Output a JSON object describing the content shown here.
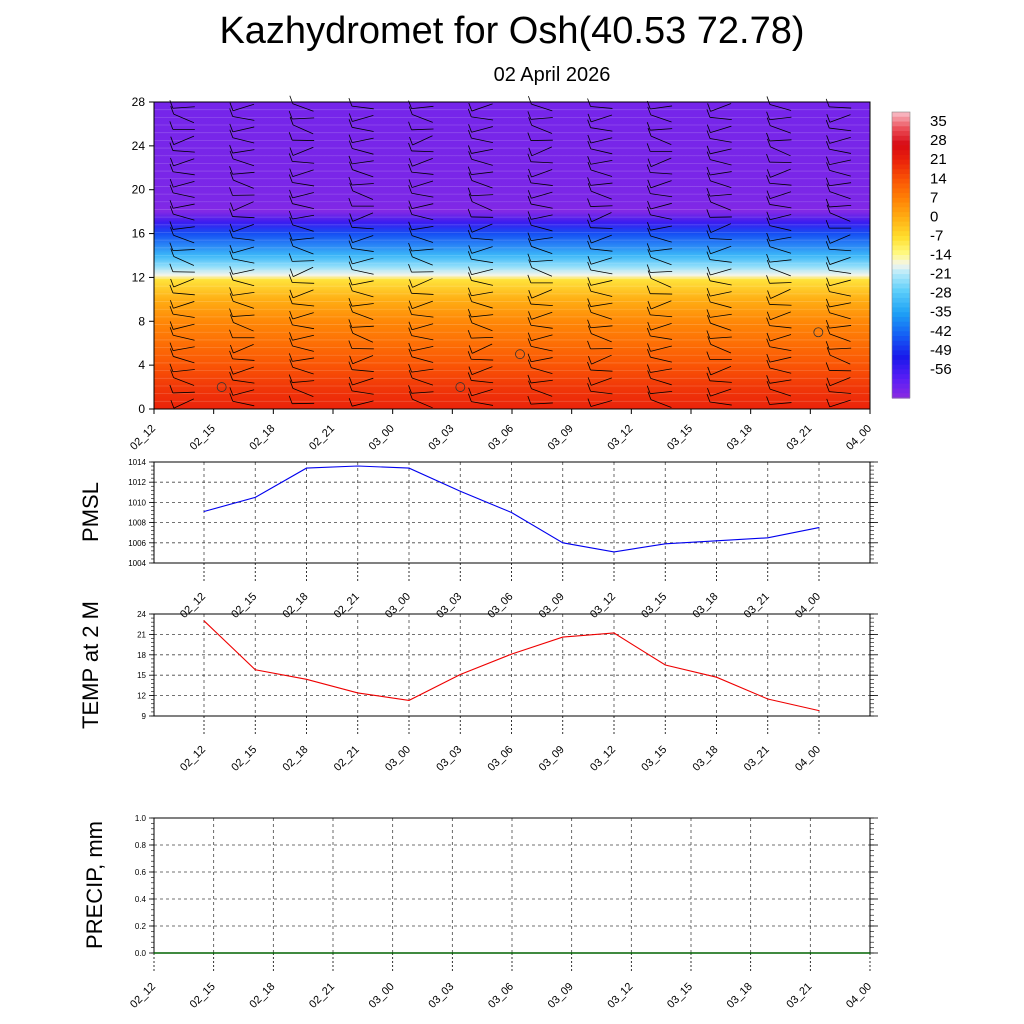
{
  "title": "Kazhydromet for Osh(40.53 72.78)",
  "subtitle": "02 April 2026",
  "time_labels": [
    "02_12",
    "02_15",
    "02_18",
    "02_21",
    "03_00",
    "03_03",
    "03_06",
    "03_09",
    "03_12",
    "03_15",
    "03_18",
    "03_21",
    "04_00"
  ],
  "chart_data": [
    {
      "type": "heatmap",
      "name": "temperature-wind-cross-section",
      "x": [
        "02_12",
        "02_15",
        "02_18",
        "02_21",
        "03_00",
        "03_03",
        "03_06",
        "03_09",
        "03_12",
        "03_15",
        "03_18",
        "03_21",
        "04_00"
      ],
      "ylim": [
        0,
        28
      ],
      "yticks": [
        0,
        4,
        8,
        12,
        16,
        20,
        24,
        28
      ],
      "colorbar_labels": [
        "35",
        "28",
        "21",
        "14",
        "7",
        "0",
        "-7",
        "-14",
        "-21",
        "-28",
        "-35",
        "-42",
        "-49",
        "-56"
      ],
      "colorbar_range": [
        -63,
        42
      ],
      "temperature_profile": [
        {
          "height": 0,
          "value": 24
        },
        {
          "height": 2,
          "value": 21
        },
        {
          "height": 4,
          "value": 17
        },
        {
          "height": 6,
          "value": 13
        },
        {
          "height": 8,
          "value": 9
        },
        {
          "height": 10,
          "value": 3
        },
        {
          "height": 11.8,
          "value": -5
        },
        {
          "height": 12.2,
          "value": -14
        },
        {
          "height": 13,
          "value": -20
        },
        {
          "height": 14,
          "value": -28
        },
        {
          "height": 16,
          "value": -42
        },
        {
          "height": 17,
          "value": -52
        },
        {
          "height": 18,
          "value": -62
        },
        {
          "height": 19,
          "value": -61
        },
        {
          "height": 28,
          "value": -60
        }
      ],
      "barb_heights": [
        0.5,
        1.5,
        2.5,
        3.5,
        4.5,
        5.5,
        6.5,
        7.5,
        8.5,
        9.5,
        10.5,
        11.5,
        12.5,
        13.5,
        14.5,
        15.5,
        16.5,
        17.5,
        18.5,
        19.5,
        20.5,
        21.5,
        22.5,
        23.5,
        24.5,
        25.5,
        26.5,
        27.5
      ]
    },
    {
      "type": "line",
      "name": "pmsl",
      "title": "",
      "xlabel": "",
      "ylabel": "PMSL",
      "x": [
        "02_12",
        "02_15",
        "02_18",
        "02_21",
        "03_00",
        "03_03",
        "03_06",
        "03_09",
        "03_12",
        "03_15",
        "03_18",
        "03_21",
        "04_00"
      ],
      "series": [
        {
          "name": "PMSL",
          "color": "#0000ee",
          "values": [
            1009.1,
            1010.5,
            1013.4,
            1013.6,
            1013.4,
            1011.1,
            1009.0,
            1006.0,
            1005.1,
            1005.9,
            1006.2,
            1006.5,
            1007.5
          ]
        }
      ],
      "ylim": [
        1004,
        1014
      ],
      "yticks": [
        "1004",
        "1006",
        "1008",
        "1010",
        "1012",
        "1014"
      ],
      "grid": true
    },
    {
      "type": "line",
      "name": "temp-2m",
      "title": "",
      "xlabel": "",
      "ylabel": "TEMP at 2 M",
      "x": [
        "02_12",
        "02_15",
        "02_18",
        "02_21",
        "03_00",
        "03_03",
        "03_06",
        "03_09",
        "03_12",
        "03_15",
        "03_18",
        "03_21",
        "04_00"
      ],
      "series": [
        {
          "name": "TEMP at 2 M",
          "color": "#ee0000",
          "values": [
            23.0,
            15.8,
            14.4,
            12.4,
            11.3,
            15.1,
            18.1,
            20.6,
            21.2,
            16.5,
            14.7,
            11.5,
            9.8
          ]
        }
      ],
      "ylim": [
        9,
        24
      ],
      "yticks": [
        "9",
        "12",
        "15",
        "18",
        "21",
        "24"
      ],
      "grid": true
    },
    {
      "type": "line",
      "name": "precip",
      "title": "",
      "xlabel": "",
      "ylabel": "PRECIP, mm",
      "x": [
        "02_12",
        "02_15",
        "02_18",
        "02_21",
        "03_00",
        "03_03",
        "03_06",
        "03_09",
        "03_12",
        "03_15",
        "03_18",
        "03_21",
        "04_00"
      ],
      "series": [
        {
          "name": "PRECIP, mm",
          "color": "#006400",
          "values": [
            0,
            0,
            0,
            0,
            0,
            0,
            0,
            0,
            0,
            0,
            0,
            0,
            0
          ]
        }
      ],
      "ylim": [
        0,
        1
      ],
      "yticks": [
        "0.0",
        "0.2",
        "0.4",
        "0.6",
        "0.8",
        "1.0"
      ],
      "grid": true
    }
  ]
}
